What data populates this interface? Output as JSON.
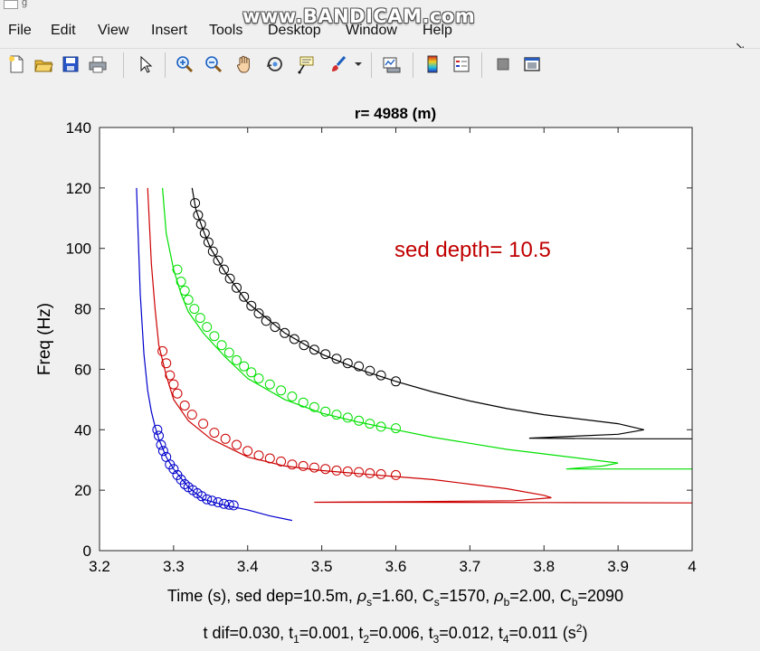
{
  "window": {
    "title": "g"
  },
  "watermark": {
    "text": "www.BANDICAM.com"
  },
  "menu": {
    "items": [
      "File",
      "Edit",
      "View",
      "Insert",
      "Tools",
      "Desktop",
      "Window",
      "Help"
    ],
    "corner_glyph": "↘"
  },
  "toolbar": {
    "icons": [
      "new-figure-icon",
      "open-file-icon",
      "save-icon",
      "print-icon",
      "pointer-icon",
      "zoom-in-icon",
      "zoom-out-icon",
      "pan-hand-icon",
      "rotate-3d-icon",
      "data-cursor-icon",
      "brush-icon",
      "dropdown-arrow-icon",
      "link-plot-icon",
      "colorbar-icon",
      "legend-icon",
      "hide-plot-tools-icon",
      "show-plot-tools-icon"
    ]
  },
  "annotation": {
    "text": "sed depth= 10.5",
    "color": "#c00000"
  },
  "xlabel_parts": {
    "a": "Time (s), sed dep=10.5m, ",
    "rho": "ρ",
    "s": "s",
    "b": "=1.60, C",
    "c": "=1570, ",
    "d": "b",
    "e": "=2.00, C",
    "f": "=2090"
  },
  "subtitle_parts": {
    "a": "t dif=0.030, t",
    "s1": "1",
    "b": "=0.001, t",
    "s2": "2",
    "c": "=0.006, t",
    "s3": "3",
    "d": "=0.012, t",
    "s4": "4",
    "e": "=0.011 (s",
    "sup": "2",
    "f": ")"
  },
  "chart_data": {
    "type": "line",
    "title": "r= 4988 (m)",
    "xlabel": "Time (s), sed dep=10.5m, ρs=1.60, Cs=1570, ρb=2.00, Cb=2090",
    "ylabel": "Freq (Hz)",
    "xlim": [
      3.2,
      4.0
    ],
    "ylim": [
      0,
      140
    ],
    "xticks": [
      "3.2",
      "3.3",
      "3.4",
      "3.5",
      "3.6",
      "3.7",
      "3.8",
      "3.9",
      "4"
    ],
    "yticks": [
      "0",
      "20",
      "40",
      "60",
      "80",
      "100",
      "120",
      "140"
    ],
    "grid": false,
    "series": [
      {
        "color": "#0000cc",
        "line": [
          [
            3.25,
            120
          ],
          [
            3.255,
            85
          ],
          [
            3.26,
            65
          ],
          [
            3.265,
            53
          ],
          [
            3.27,
            46
          ],
          [
            3.275,
            41
          ],
          [
            3.28,
            37
          ],
          [
            3.29,
            31
          ],
          [
            3.3,
            27
          ],
          [
            3.32,
            21
          ],
          [
            3.34,
            17
          ],
          [
            3.37,
            15
          ],
          [
            3.4,
            13.5
          ],
          [
            3.43,
            11.5
          ],
          [
            3.46,
            10
          ]
        ],
        "markers": [
          [
            3.278,
            40
          ],
          [
            3.28,
            38
          ],
          [
            3.283,
            35
          ],
          [
            3.286,
            33
          ],
          [
            3.29,
            31
          ],
          [
            3.295,
            28.5
          ],
          [
            3.3,
            27
          ],
          [
            3.305,
            25
          ],
          [
            3.31,
            23.5
          ],
          [
            3.315,
            22
          ],
          [
            3.32,
            21
          ],
          [
            3.326,
            20
          ],
          [
            3.332,
            19
          ],
          [
            3.338,
            18
          ],
          [
            3.345,
            17
          ],
          [
            3.352,
            16.5
          ],
          [
            3.36,
            16
          ],
          [
            3.368,
            15.5
          ],
          [
            3.375,
            15.2
          ],
          [
            3.381,
            15
          ]
        ],
        "marker_style": "circle"
      },
      {
        "color": "#cc0000",
        "line": [
          [
            3.265,
            120
          ],
          [
            3.27,
            95
          ],
          [
            3.275,
            80
          ],
          [
            3.28,
            68
          ],
          [
            3.29,
            58
          ],
          [
            3.3,
            50
          ],
          [
            3.32,
            43
          ],
          [
            3.35,
            37
          ],
          [
            3.4,
            31
          ],
          [
            3.45,
            28
          ],
          [
            3.5,
            26.5
          ],
          [
            3.55,
            25.5
          ],
          [
            3.6,
            24.5
          ],
          [
            3.65,
            23.5
          ],
          [
            3.7,
            22
          ],
          [
            3.75,
            20.5
          ],
          [
            3.8,
            18.3
          ],
          [
            3.81,
            17.5
          ],
          [
            3.76,
            16.5
          ],
          [
            3.62,
            16.2
          ],
          [
            3.49,
            16
          ],
          [
            3.6,
            16
          ],
          [
            3.8,
            15.9
          ],
          [
            4.0,
            15.8
          ]
        ],
        "markers": [
          [
            3.285,
            66
          ],
          [
            3.29,
            62
          ],
          [
            3.295,
            58
          ],
          [
            3.3,
            55
          ],
          [
            3.305,
            52
          ],
          [
            3.315,
            48
          ],
          [
            3.325,
            45
          ],
          [
            3.34,
            42
          ],
          [
            3.355,
            39
          ],
          [
            3.37,
            37
          ],
          [
            3.385,
            35
          ],
          [
            3.4,
            33
          ],
          [
            3.415,
            31.5
          ],
          [
            3.43,
            30.5
          ],
          [
            3.445,
            29.5
          ],
          [
            3.46,
            28.5
          ],
          [
            3.475,
            28
          ],
          [
            3.49,
            27.5
          ],
          [
            3.505,
            27
          ],
          [
            3.52,
            26.5
          ],
          [
            3.535,
            26.2
          ],
          [
            3.55,
            26
          ],
          [
            3.565,
            25.6
          ],
          [
            3.58,
            25.3
          ],
          [
            3.6,
            25
          ]
        ],
        "marker_style": "circle"
      },
      {
        "color": "#00e000",
        "line": [
          [
            3.285,
            120
          ],
          [
            3.29,
            105
          ],
          [
            3.3,
            93
          ],
          [
            3.31,
            85
          ],
          [
            3.32,
            79
          ],
          [
            3.34,
            72
          ],
          [
            3.37,
            64
          ],
          [
            3.4,
            57
          ],
          [
            3.45,
            50
          ],
          [
            3.5,
            45.5
          ],
          [
            3.55,
            42.5
          ],
          [
            3.6,
            40
          ],
          [
            3.65,
            37.5
          ],
          [
            3.7,
            35.5
          ],
          [
            3.75,
            33.5
          ],
          [
            3.8,
            32
          ],
          [
            3.85,
            30.5
          ],
          [
            3.9,
            29
          ],
          [
            3.88,
            28
          ],
          [
            3.83,
            27
          ],
          [
            3.9,
            27
          ],
          [
            4.0,
            27
          ]
        ],
        "markers": [
          [
            3.305,
            93
          ],
          [
            3.31,
            89
          ],
          [
            3.315,
            86
          ],
          [
            3.32,
            83
          ],
          [
            3.328,
            80
          ],
          [
            3.336,
            77
          ],
          [
            3.345,
            74
          ],
          [
            3.355,
            71
          ],
          [
            3.365,
            68
          ],
          [
            3.375,
            65.5
          ],
          [
            3.385,
            63
          ],
          [
            3.395,
            61
          ],
          [
            3.405,
            59
          ],
          [
            3.415,
            57
          ],
          [
            3.43,
            55
          ],
          [
            3.445,
            53
          ],
          [
            3.46,
            51
          ],
          [
            3.475,
            49
          ],
          [
            3.49,
            47.5
          ],
          [
            3.505,
            46
          ],
          [
            3.52,
            45
          ],
          [
            3.535,
            44
          ],
          [
            3.55,
            43
          ],
          [
            3.565,
            42
          ],
          [
            3.58,
            41
          ],
          [
            3.6,
            40.5
          ]
        ],
        "marker_style": "circle"
      },
      {
        "color": "#000000",
        "line": [
          [
            3.325,
            120
          ],
          [
            3.33,
            113
          ],
          [
            3.34,
            106
          ],
          [
            3.35,
            100
          ],
          [
            3.37,
            92
          ],
          [
            3.4,
            82
          ],
          [
            3.45,
            72
          ],
          [
            3.5,
            65
          ],
          [
            3.55,
            60
          ],
          [
            3.6,
            56
          ],
          [
            3.65,
            52.5
          ],
          [
            3.7,
            49.5
          ],
          [
            3.75,
            47
          ],
          [
            3.8,
            45
          ],
          [
            3.85,
            43.5
          ],
          [
            3.9,
            42
          ],
          [
            3.935,
            40
          ],
          [
            3.9,
            38.5
          ],
          [
            3.78,
            37.2
          ],
          [
            3.9,
            37
          ],
          [
            4.0,
            37
          ]
        ],
        "markers": [
          [
            3.329,
            115
          ],
          [
            3.333,
            111
          ],
          [
            3.337,
            108
          ],
          [
            3.342,
            105
          ],
          [
            3.347,
            102
          ],
          [
            3.353,
            99
          ],
          [
            3.36,
            96
          ],
          [
            3.368,
            93
          ],
          [
            3.376,
            90
          ],
          [
            3.385,
            87
          ],
          [
            3.395,
            84
          ],
          [
            3.405,
            81
          ],
          [
            3.415,
            78.5
          ],
          [
            3.425,
            76
          ],
          [
            3.437,
            74
          ],
          [
            3.45,
            72
          ],
          [
            3.463,
            70
          ],
          [
            3.476,
            68
          ],
          [
            3.49,
            66.5
          ],
          [
            3.505,
            65
          ],
          [
            3.52,
            63.5
          ],
          [
            3.535,
            62
          ],
          [
            3.55,
            61
          ],
          [
            3.565,
            59.5
          ],
          [
            3.58,
            58
          ],
          [
            3.6,
            56
          ]
        ],
        "marker_style": "circle"
      }
    ]
  }
}
